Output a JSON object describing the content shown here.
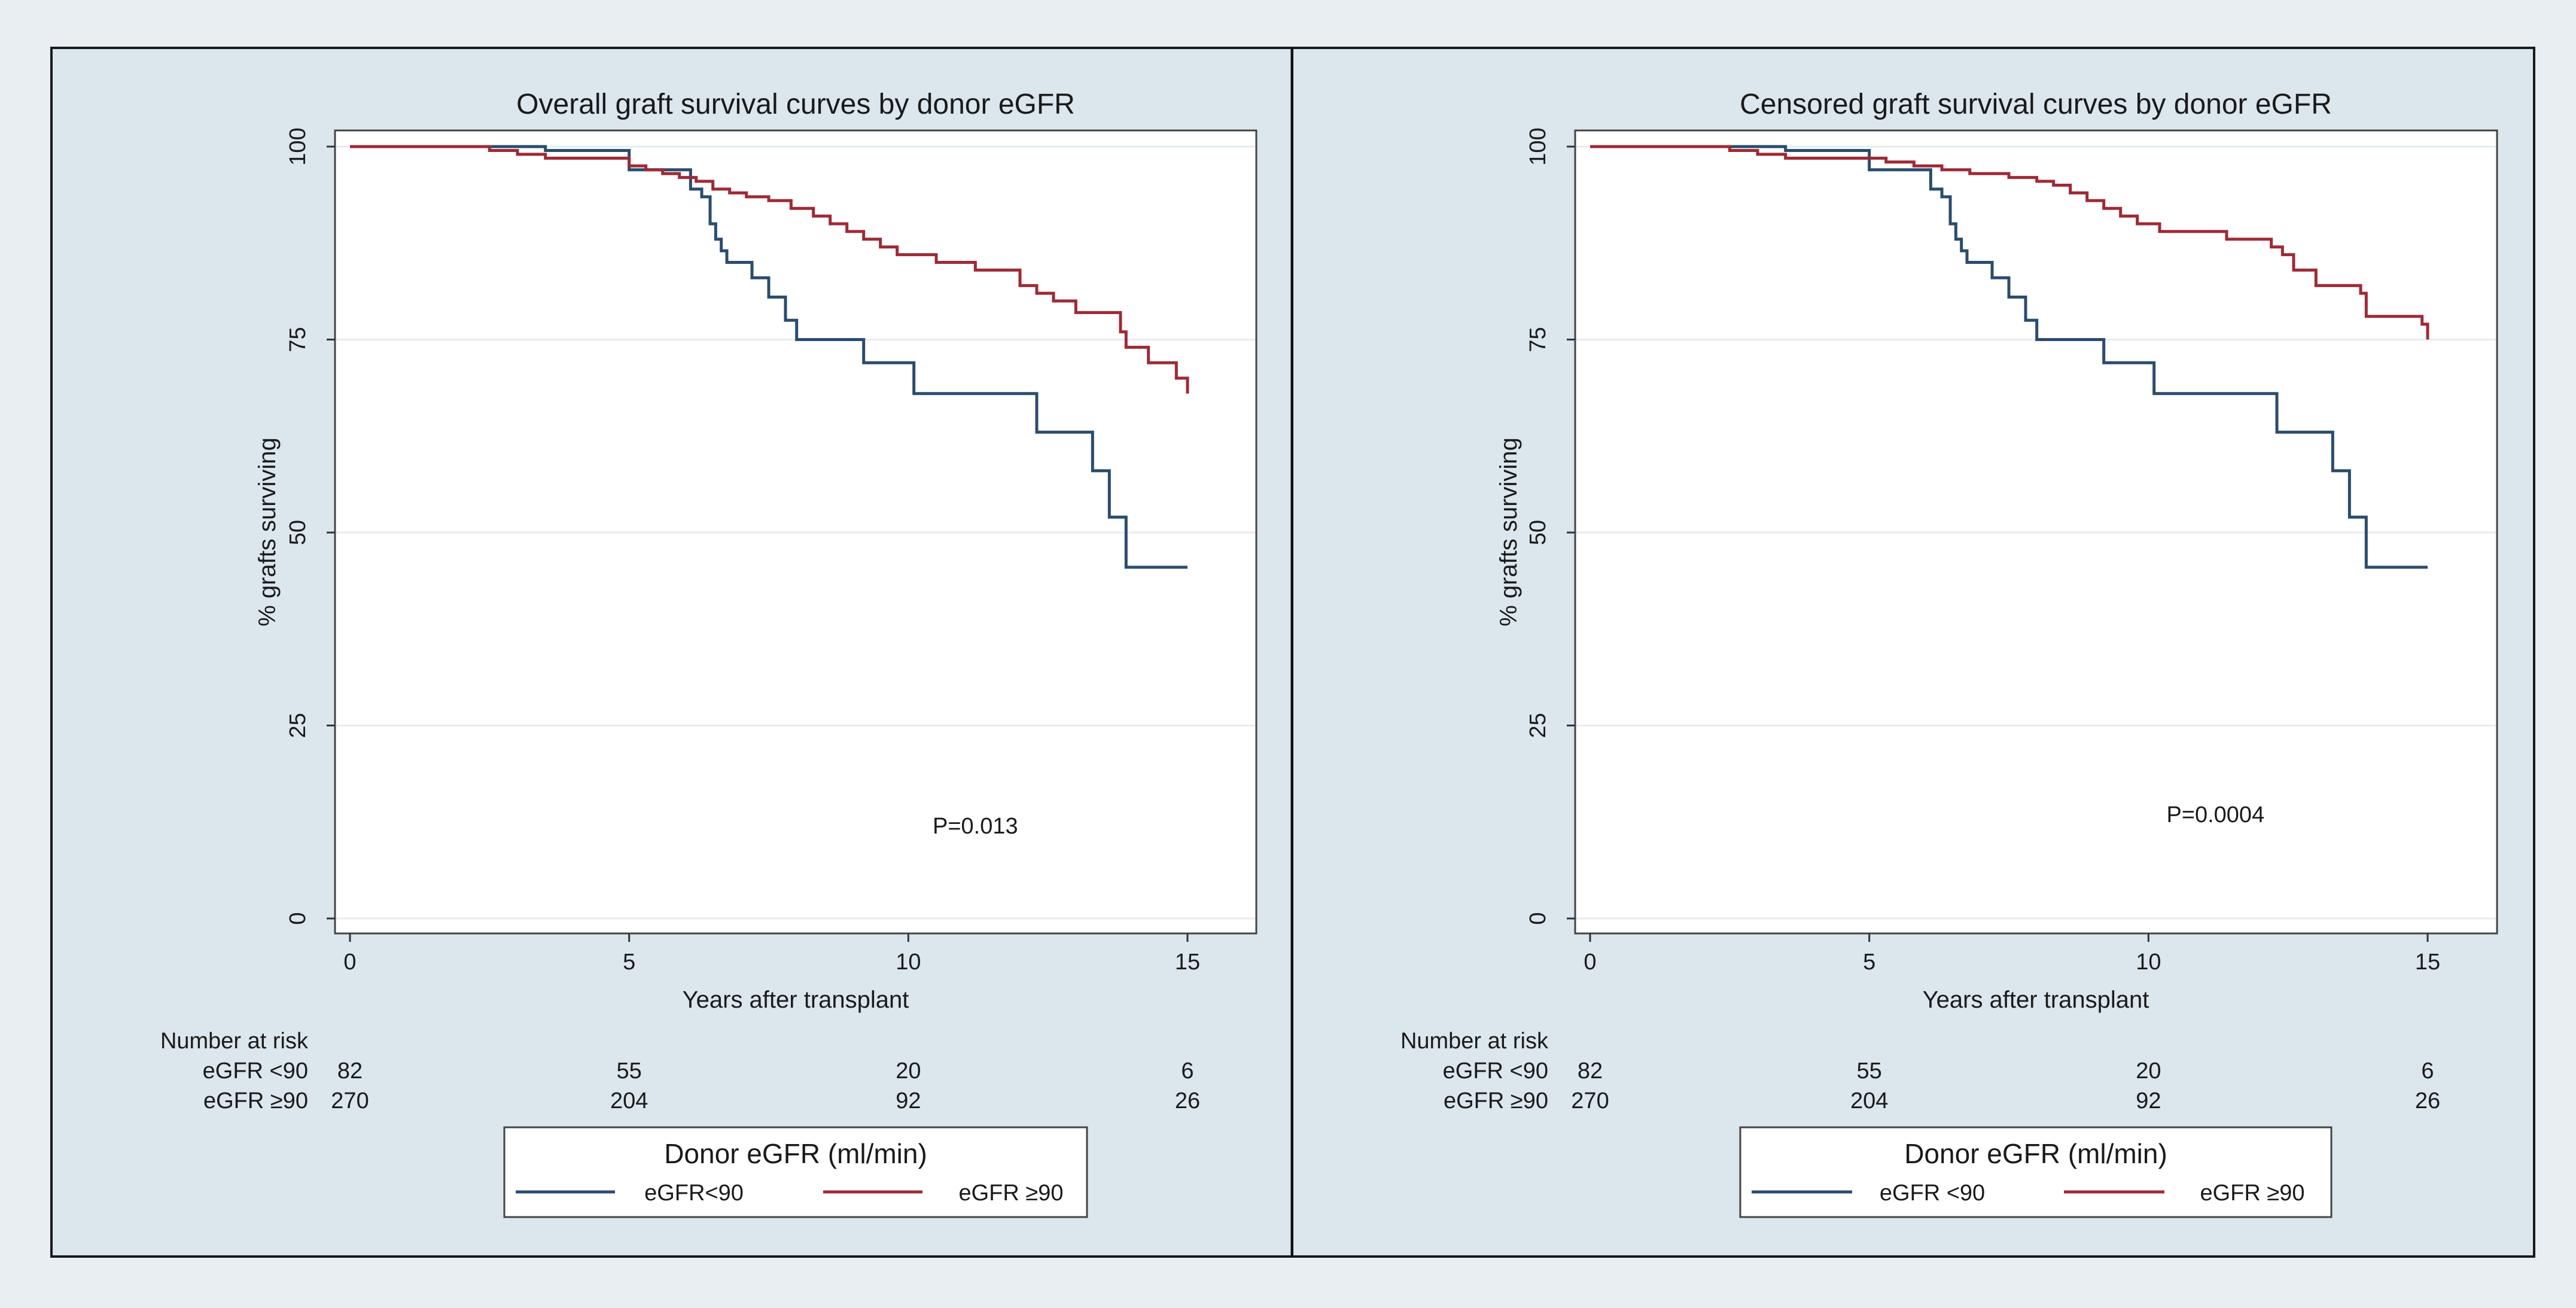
{
  "colors": {
    "outer_background": "#e8eef2",
    "panel_background": "#dbe6ed",
    "plot_background": "#ffffff",
    "low_egfr": "#2a4c6e",
    "high_egfr": "#9e2a35"
  },
  "chart_data": [
    {
      "type": "line",
      "step": true,
      "title": "Overall graft survival curves by donor eGFR",
      "xlabel": "Years after transplant",
      "ylabel": "% grafts surviving",
      "xlim": [
        0,
        15
      ],
      "ylim": [
        0,
        100
      ],
      "xticks": [
        0,
        5,
        10,
        15
      ],
      "yticks": [
        0,
        25,
        50,
        75,
        100
      ],
      "grid": "horizontal",
      "annotation": "P=0.013",
      "annotation_pos": {
        "x": 11.2,
        "y": 11
      },
      "risk_table": {
        "heading": "Number at risk",
        "columns": [
          0,
          5,
          10,
          15
        ],
        "rows": [
          {
            "label": "eGFR <90",
            "values": [
              "82",
              "55",
              "20",
              "6"
            ]
          },
          {
            "label": "eGFR ≥90",
            "values": [
              "270",
              "204",
              "92",
              "26"
            ]
          }
        ]
      },
      "legend": {
        "title": "Donor eGFR (ml/min)",
        "placement": "bottom",
        "entries": [
          "eGFR<90",
          "eGFR ≥90"
        ]
      },
      "series": [
        {
          "name": "eGFR<90",
          "color_key": "low_egfr",
          "x": [
            0,
            3.5,
            5,
            6.1,
            6.3,
            6.45,
            6.55,
            6.65,
            6.75,
            7.2,
            7.5,
            7.8,
            8.0,
            9.2,
            10.1,
            12.3,
            13.3,
            13.6,
            13.9,
            15
          ],
          "y": [
            100,
            99.5,
            97,
            94.5,
            93.5,
            90,
            88,
            86.5,
            85,
            83,
            80.5,
            77.5,
            75,
            72,
            68,
            63,
            58,
            52,
            45.5,
            45.5
          ]
        },
        {
          "name": "eGFR ≥90",
          "color_key": "high_egfr",
          "x": [
            0,
            2.5,
            3.0,
            3.5,
            5.0,
            5.3,
            5.6,
            5.9,
            6.2,
            6.5,
            6.8,
            7.1,
            7.5,
            7.9,
            8.3,
            8.6,
            8.9,
            9.2,
            9.5,
            9.8,
            10.5,
            11.2,
            12.0,
            12.3,
            12.6,
            13.0,
            13.8,
            13.9,
            14.3,
            14.8,
            15
          ],
          "y": [
            100,
            99.5,
            99,
            98.5,
            97.5,
            97,
            96.5,
            96,
            95.5,
            94.5,
            94,
            93.5,
            93,
            92,
            91,
            90,
            89,
            88,
            87,
            86,
            85,
            84,
            82,
            81,
            80,
            78.5,
            76,
            74,
            72,
            70,
            68
          ]
        }
      ]
    },
    {
      "type": "line",
      "step": true,
      "title": "Censored graft survival curves by donor eGFR",
      "xlabel": "Years after transplant",
      "ylabel": "% grafts surviving",
      "xlim": [
        0,
        15
      ],
      "ylim": [
        0,
        100
      ],
      "xticks": [
        0,
        5,
        10,
        15
      ],
      "yticks": [
        0,
        25,
        50,
        75,
        100
      ],
      "grid": "horizontal",
      "annotation": "P=0.0004",
      "annotation_pos": {
        "x": 11.2,
        "y": 12.5
      },
      "risk_table": {
        "heading": "Number at risk",
        "columns": [
          0,
          5,
          10,
          15
        ],
        "rows": [
          {
            "label": "eGFR <90",
            "values": [
              "82",
              "55",
              "20",
              "6"
            ]
          },
          {
            "label": "eGFR ≥90",
            "values": [
              "270",
              "204",
              "92",
              "26"
            ]
          }
        ]
      },
      "legend": {
        "title": "Donor eGFR (ml/min)",
        "placement": "bottom",
        "entries": [
          "eGFR <90",
          "eGFR ≥90"
        ]
      },
      "series": [
        {
          "name": "eGFR <90",
          "color_key": "low_egfr",
          "x": [
            0,
            3.5,
            5,
            6.1,
            6.3,
            6.45,
            6.55,
            6.65,
            6.75,
            7.2,
            7.5,
            7.8,
            8.0,
            9.2,
            10.1,
            12.3,
            13.3,
            13.6,
            13.9,
            15
          ],
          "y": [
            100,
            99.5,
            97,
            94.5,
            93.5,
            90,
            88,
            86.5,
            85,
            83,
            80.5,
            77.5,
            75,
            72,
            68,
            63,
            58,
            52,
            45.5,
            45.5
          ]
        },
        {
          "name": "eGFR ≥90",
          "color_key": "high_egfr",
          "x": [
            0,
            2.5,
            3.0,
            3.5,
            5.3,
            5.8,
            6.3,
            6.8,
            7.5,
            8.0,
            8.3,
            8.6,
            8.9,
            9.2,
            9.5,
            9.8,
            10.2,
            10.6,
            11.4,
            12.2,
            12.4,
            12.6,
            13.0,
            13.8,
            13.9,
            14.9,
            15
          ],
          "y": [
            100,
            99.5,
            99,
            98.5,
            98,
            97.5,
            97,
            96.5,
            96,
            95.5,
            95,
            94,
            93,
            92,
            91,
            90,
            89,
            89,
            88,
            87,
            86,
            84,
            82,
            81,
            78,
            77,
            75
          ]
        }
      ]
    }
  ]
}
